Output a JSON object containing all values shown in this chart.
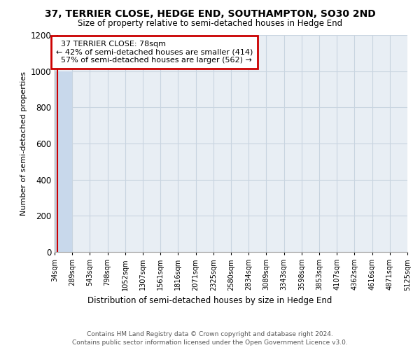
{
  "title": "37, TERRIER CLOSE, HEDGE END, SOUTHAMPTON, SO30 2ND",
  "subtitle": "Size of property relative to semi-detached houses in Hedge End",
  "xlabel": "Distribution of semi-detached houses by size in Hedge End",
  "ylabel": "Number of semi-detached properties",
  "bin_edges": [
    34,
    289,
    543,
    798,
    1052,
    1307,
    1561,
    1816,
    2071,
    2325,
    2580,
    2834,
    3089,
    3343,
    3598,
    3853,
    4107,
    4362,
    4616,
    4871,
    5125
  ],
  "bar_heights": [
    1000,
    0,
    0,
    0,
    0,
    0,
    0,
    0,
    0,
    0,
    0,
    0,
    0,
    0,
    0,
    0,
    0,
    0,
    0,
    0
  ],
  "property_size": 78,
  "property_label": "37 TERRIER CLOSE: 78sqm",
  "pct_smaller": 42,
  "count_smaller": 414,
  "pct_larger": 57,
  "count_larger": 562,
  "bar_color": "#c8d8eb",
  "annotation_box_edge": "#cc0000",
  "grid_color": "#c8d4e0",
  "background_color": "#e8eef4",
  "ylim": [
    0,
    1200
  ],
  "yticks": [
    0,
    200,
    400,
    600,
    800,
    1000,
    1200
  ],
  "footer_line1": "Contains HM Land Registry data © Crown copyright and database right 2024.",
  "footer_line2": "Contains public sector information licensed under the Open Government Licence v3.0."
}
